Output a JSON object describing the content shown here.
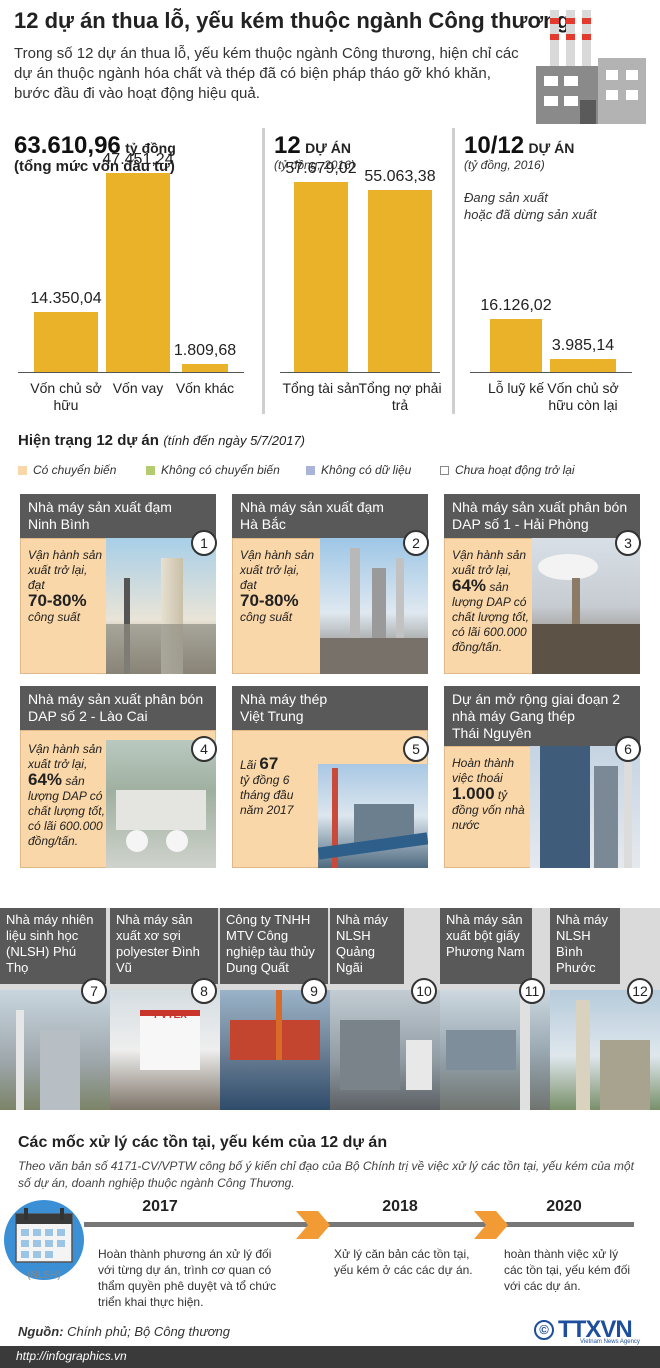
{
  "title": "12 dự án thua lỗ, yếu kém thuộc ngành Công thương",
  "intro": "Trong số 12 dự án thua lỗ, yếu kém thuộc ngành Công thương, hiện chỉ các dự án thuộc ngành hóa chất và thép đã có biện pháp tháo gỡ khó khăn, bước đầu đi vào hoạt động hiệu quả.",
  "colors": {
    "bar": "#e9b229",
    "card": "#fad7a8",
    "header": "#595959",
    "arrow": "#f29a33"
  },
  "panel1": {
    "value": "63.610,96",
    "unit": "tỷ đồng",
    "caption": "(tổng mức vốn đầu tư)"
  },
  "panel2": {
    "value": "12",
    "unit": "DỰ ÁN",
    "note": "(tỷ đồng, 2016)"
  },
  "panel3": {
    "value": "10/12",
    "unit": "DỰ ÁN",
    "note": "(tỷ đồng, 2016)",
    "desc1": "Đang sản xuất",
    "desc2": "hoặc đã dừng sản xuất"
  },
  "chart_data": [
    {
      "type": "bar",
      "categories": [
        "Vốn chủ sở hữu",
        "Vốn vay",
        "Vốn khác"
      ],
      "values": [
        14350.04,
        47451.24,
        1809.68
      ],
      "labels": [
        "14.350,04",
        "47.451,24",
        "1.809,68"
      ],
      "ylim": [
        0,
        50000
      ]
    },
    {
      "type": "bar",
      "categories": [
        "Tổng tài sản",
        "Tổng nợ phải trả"
      ],
      "values": [
        57679.02,
        55063.38
      ],
      "labels": [
        "57.679,02",
        "55.063,38"
      ],
      "ylim": [
        0,
        60000
      ]
    },
    {
      "type": "bar",
      "categories": [
        "Lỗ luỹ kế",
        "Vốn chủ sở hữu còn lại"
      ],
      "values": [
        16126.02,
        3985.14
      ],
      "labels": [
        "16.126,02",
        "3.985,14"
      ],
      "ylim": [
        0,
        60000
      ]
    }
  ],
  "status": {
    "title": "Hiện trạng 12 dự án",
    "date": "(tính đến ngày 5/7/2017)",
    "legend": [
      {
        "label": "Có chuyển biến",
        "color": "#fad7a8"
      },
      {
        "label": "Không có chuyển biến",
        "color": "#b5cc6e"
      },
      {
        "label": "Không có dữ liệu",
        "color": "#a9b4d8"
      },
      {
        "label": "Chưa hoạt động trở lại",
        "color": "#ffffff"
      }
    ]
  },
  "projects": [
    {
      "num": "1",
      "name1": "Nhà máy sản xuất đạm",
      "name2": "Ninh Bình",
      "text": "Vận hành sản xuất trở lại, đạt",
      "highlight": "70-80%",
      "tail": "công suất"
    },
    {
      "num": "2",
      "name1": "Nhà máy sản xuất đạm",
      "name2": "Hà Bắc",
      "text": "Vận hành sản xuất trở lại, đạt",
      "highlight": "70-80%",
      "tail": "công suất"
    },
    {
      "num": "3",
      "name1": "Nhà máy sản xuất phân bón",
      "name2": "DAP số 1 - Hải Phòng",
      "text": "Vận hành sản xuất trở lại,",
      "highlight": "64%",
      "tail": "sản lượng DAP có chất lượng tốt, có lãi 600.000 đồng/tấn."
    },
    {
      "num": "4",
      "name1": "Nhà máy sản xuất phân bón",
      "name2": "DAP số 2 - Lào Cai",
      "text": "Vận hành sản xuất trở lại,",
      "highlight": "64%",
      "tail": "sản lượng DAP có chất lượng tốt, có lãi 600.000 đồng/tấn."
    },
    {
      "num": "5",
      "name1": "Nhà máy thép",
      "name2": "Việt Trung",
      "text": "Lãi",
      "highlight": "67",
      "tail": "tỷ đồng 6 tháng đầu năm 2017"
    },
    {
      "num": "6",
      "name1": "Dự án mở rộng giai đoạn 2",
      "name2": "nhà máy Gang thép",
      "name3": "Thái Nguyên",
      "text": "Hoàn thành việc thoái",
      "highlight": "1.000",
      "tail": "tỷ đồng vốn nhà nước"
    }
  ],
  "inactive": [
    {
      "num": "7",
      "name": "Nhà máy nhiên liệu sinh học (NLSH) Phú Thọ"
    },
    {
      "num": "8",
      "name": "Nhà máy sản xuất xơ sợi polyester Đình Vũ"
    },
    {
      "num": "9",
      "name": "Công ty TNHH MTV Công nghiệp tàu thủy Dung Quất"
    },
    {
      "num": "10",
      "name": "Nhà máy NLSH Quảng Ngãi"
    },
    {
      "num": "11",
      "name": "Nhà máy sản xuất bột giấy Phương Nam"
    },
    {
      "num": "12",
      "name": "Nhà máy NLSH Bình Phước"
    }
  ],
  "timeline": {
    "title": "Các mốc xử lý các tồn tại, yếu kém của 12 dự án",
    "subtitle": "Theo văn bản số 4171-CV/VPTW công bố ý kiến chỉ đạo của Bộ Chính trị về việc xử lý các tồn tại, yếu kém của một số dự án, doanh nghiệp thuộc ngành Công Thương.",
    "calendar_label": "(NLSH)",
    "steps": [
      {
        "year": "2017",
        "text": "Hoàn thành phương án xử lý đối với từng dự án, trình cơ quan có thẩm quyền phê duyệt và tổ chức triển khai thực hiện."
      },
      {
        "year": "2018",
        "text": "Xử lý căn bản các tồn tại, yếu kém ở các các dự án."
      },
      {
        "year": "2020",
        "text": "hoàn thành việc xử lý các tồn tại, yếu kém đối với các dự án."
      }
    ]
  },
  "source_label": "Nguồn:",
  "source_text": "Chính phủ; Bộ Công thương",
  "logo": "TTXVN",
  "logo_sub": "Vietnam News Agency",
  "footer": "http://infographics.vn"
}
